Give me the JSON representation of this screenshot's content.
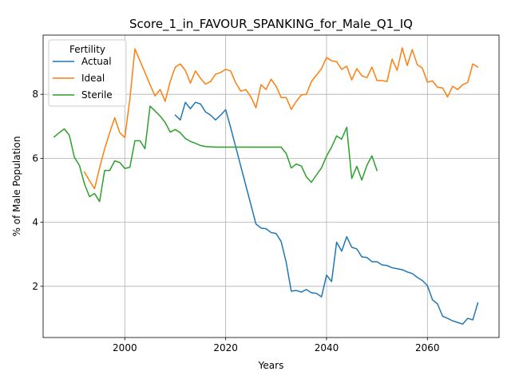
{
  "chart_data": {
    "type": "line",
    "title": "Score_1_in_FAVOUR_SPANKING_for_Male_Q1_IQ",
    "xlabel": "Years",
    "ylabel": "% of Male Population",
    "xlim": [
      1983.8,
      2074.2
    ],
    "ylim": [
      0.4,
      9.85
    ],
    "x_ticks": [
      2000,
      2020,
      2040,
      2060
    ],
    "y_ticks": [
      2,
      4,
      6,
      8
    ],
    "grid": true,
    "legend": {
      "title": "Fertility",
      "position": "top-left"
    },
    "series": [
      {
        "name": "Actual",
        "color": "#1f77b4",
        "points": [
          [
            2010,
            7.35
          ],
          [
            2011,
            7.2
          ],
          [
            2012,
            7.75
          ],
          [
            2013,
            7.55
          ],
          [
            2014,
            7.75
          ],
          [
            2015,
            7.7
          ],
          [
            2016,
            7.45
          ],
          [
            2017,
            7.35
          ],
          [
            2018,
            7.2
          ],
          [
            2019,
            7.35
          ],
          [
            2020,
            7.52
          ],
          [
            2021,
            6.95
          ],
          [
            2022,
            6.35
          ],
          [
            2023,
            5.75
          ],
          [
            2024,
            5.15
          ],
          [
            2025,
            4.55
          ],
          [
            2026,
            3.95
          ],
          [
            2027,
            3.82
          ],
          [
            2028,
            3.8
          ],
          [
            2029,
            3.68
          ],
          [
            2030,
            3.65
          ],
          [
            2031,
            3.4
          ],
          [
            2032,
            2.75
          ],
          [
            2033,
            1.85
          ],
          [
            2034,
            1.87
          ],
          [
            2035,
            1.82
          ],
          [
            2036,
            1.9
          ],
          [
            2037,
            1.8
          ],
          [
            2038,
            1.78
          ],
          [
            2039,
            1.67
          ],
          [
            2040,
            2.35
          ],
          [
            2041,
            2.15
          ],
          [
            2042,
            3.38
          ],
          [
            2043,
            3.1
          ],
          [
            2044,
            3.55
          ],
          [
            2045,
            3.22
          ],
          [
            2046,
            3.17
          ],
          [
            2047,
            2.92
          ],
          [
            2048,
            2.9
          ],
          [
            2049,
            2.77
          ],
          [
            2050,
            2.77
          ],
          [
            2051,
            2.67
          ],
          [
            2052,
            2.65
          ],
          [
            2053,
            2.58
          ],
          [
            2054,
            2.55
          ],
          [
            2055,
            2.52
          ],
          [
            2056,
            2.45
          ],
          [
            2057,
            2.4
          ],
          [
            2058,
            2.28
          ],
          [
            2059,
            2.18
          ],
          [
            2060,
            2.02
          ],
          [
            2061,
            1.58
          ],
          [
            2062,
            1.45
          ],
          [
            2063,
            1.07
          ],
          [
            2064,
            1.0
          ],
          [
            2065,
            0.92
          ],
          [
            2066,
            0.87
          ],
          [
            2067,
            0.82
          ],
          [
            2068,
            1.0
          ],
          [
            2069,
            0.95
          ],
          [
            2070,
            1.48
          ]
        ]
      },
      {
        "name": "Ideal",
        "color": "#ff7f0e",
        "points": [
          [
            1992,
            5.57
          ],
          [
            1993,
            5.3
          ],
          [
            1994,
            5.05
          ],
          [
            1995,
            5.7
          ],
          [
            1996,
            6.3
          ],
          [
            1997,
            6.8
          ],
          [
            1998,
            7.27
          ],
          [
            1999,
            6.8
          ],
          [
            2000,
            6.65
          ],
          [
            2001,
            7.85
          ],
          [
            2002,
            9.42
          ],
          [
            2003,
            9.05
          ],
          [
            2004,
            8.68
          ],
          [
            2005,
            8.3
          ],
          [
            2006,
            7.95
          ],
          [
            2007,
            8.15
          ],
          [
            2008,
            7.78
          ],
          [
            2009,
            8.4
          ],
          [
            2010,
            8.85
          ],
          [
            2011,
            8.95
          ],
          [
            2012,
            8.75
          ],
          [
            2013,
            8.35
          ],
          [
            2014,
            8.73
          ],
          [
            2015,
            8.5
          ],
          [
            2016,
            8.32
          ],
          [
            2017,
            8.4
          ],
          [
            2018,
            8.63
          ],
          [
            2019,
            8.68
          ],
          [
            2020,
            8.78
          ],
          [
            2021,
            8.73
          ],
          [
            2022,
            8.35
          ],
          [
            2023,
            8.1
          ],
          [
            2024,
            8.15
          ],
          [
            2025,
            7.92
          ],
          [
            2026,
            7.58
          ],
          [
            2027,
            8.3
          ],
          [
            2028,
            8.15
          ],
          [
            2029,
            8.47
          ],
          [
            2030,
            8.25
          ],
          [
            2031,
            7.9
          ],
          [
            2032,
            7.9
          ],
          [
            2033,
            7.53
          ],
          [
            2034,
            7.78
          ],
          [
            2035,
            7.98
          ],
          [
            2036,
            8.0
          ],
          [
            2037,
            8.4
          ],
          [
            2038,
            8.6
          ],
          [
            2039,
            8.8
          ],
          [
            2040,
            9.15
          ],
          [
            2041,
            9.05
          ],
          [
            2042,
            9.02
          ],
          [
            2043,
            8.78
          ],
          [
            2044,
            8.88
          ],
          [
            2045,
            8.45
          ],
          [
            2046,
            8.8
          ],
          [
            2047,
            8.58
          ],
          [
            2048,
            8.52
          ],
          [
            2049,
            8.85
          ],
          [
            2050,
            8.43
          ],
          [
            2051,
            8.43
          ],
          [
            2052,
            8.4
          ],
          [
            2053,
            9.1
          ],
          [
            2054,
            8.75
          ],
          [
            2055,
            9.45
          ],
          [
            2056,
            8.9
          ],
          [
            2057,
            9.4
          ],
          [
            2058,
            8.92
          ],
          [
            2059,
            8.82
          ],
          [
            2060,
            8.38
          ],
          [
            2061,
            8.42
          ],
          [
            2062,
            8.22
          ],
          [
            2063,
            8.2
          ],
          [
            2064,
            7.92
          ],
          [
            2065,
            8.25
          ],
          [
            2066,
            8.15
          ],
          [
            2067,
            8.3
          ],
          [
            2068,
            8.37
          ],
          [
            2069,
            8.95
          ],
          [
            2070,
            8.85
          ]
        ]
      },
      {
        "name": "Sterile",
        "color": "#2ca02c",
        "points": [
          [
            1986,
            6.67
          ],
          [
            1987,
            6.8
          ],
          [
            1988,
            6.92
          ],
          [
            1989,
            6.72
          ],
          [
            1990,
            6.03
          ],
          [
            1991,
            5.78
          ],
          [
            1992,
            5.2
          ],
          [
            1993,
            4.8
          ],
          [
            1994,
            4.9
          ],
          [
            1995,
            4.65
          ],
          [
            1996,
            5.62
          ],
          [
            1997,
            5.62
          ],
          [
            1998,
            5.92
          ],
          [
            1999,
            5.87
          ],
          [
            2000,
            5.68
          ],
          [
            2001,
            5.72
          ],
          [
            2002,
            6.55
          ],
          [
            2003,
            6.55
          ],
          [
            2004,
            6.3
          ],
          [
            2005,
            7.63
          ],
          [
            2006,
            7.48
          ],
          [
            2007,
            7.32
          ],
          [
            2008,
            7.12
          ],
          [
            2009,
            6.82
          ],
          [
            2010,
            6.9
          ],
          [
            2011,
            6.8
          ],
          [
            2012,
            6.62
          ],
          [
            2013,
            6.53
          ],
          [
            2014,
            6.47
          ],
          [
            2015,
            6.4
          ],
          [
            2016,
            6.37
          ],
          [
            2017,
            6.36
          ],
          [
            2018,
            6.35
          ],
          [
            2019,
            6.35
          ],
          [
            2020,
            6.35
          ],
          [
            2021,
            6.35
          ],
          [
            2022,
            6.35
          ],
          [
            2023,
            6.35
          ],
          [
            2024,
            6.35
          ],
          [
            2025,
            6.35
          ],
          [
            2026,
            6.35
          ],
          [
            2027,
            6.35
          ],
          [
            2028,
            6.35
          ],
          [
            2029,
            6.35
          ],
          [
            2030,
            6.35
          ],
          [
            2031,
            6.35
          ],
          [
            2032,
            6.15
          ],
          [
            2033,
            5.7
          ],
          [
            2034,
            5.82
          ],
          [
            2035,
            5.76
          ],
          [
            2036,
            5.42
          ],
          [
            2037,
            5.25
          ],
          [
            2038,
            5.48
          ],
          [
            2039,
            5.7
          ],
          [
            2040,
            6.07
          ],
          [
            2041,
            6.35
          ],
          [
            2042,
            6.7
          ],
          [
            2043,
            6.6
          ],
          [
            2044,
            6.97
          ],
          [
            2045,
            5.37
          ],
          [
            2046,
            5.75
          ],
          [
            2047,
            5.32
          ],
          [
            2048,
            5.78
          ],
          [
            2049,
            6.08
          ],
          [
            2050,
            5.62
          ]
        ]
      }
    ]
  }
}
